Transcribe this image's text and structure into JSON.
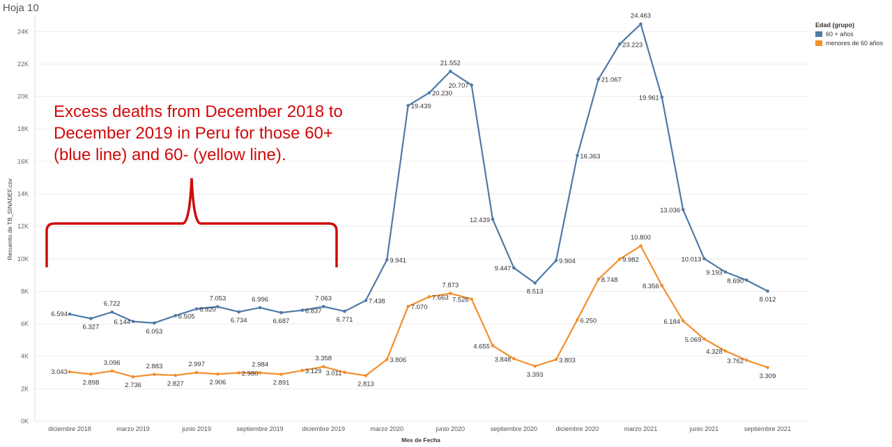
{
  "sheet_title": "Hoja 10",
  "annotation": "Excess deaths from December 2018 to December 2019 in Peru for those 60+ (blue line) and 60- (yellow line).",
  "colors": {
    "accent_red": "#d10a0a",
    "series_60plus": "#4e79a7",
    "series_under60": "#f28e2b"
  },
  "chart_data": {
    "type": "line",
    "xlabel": "Mes de Fecha",
    "ylabel": "Recuento de TB_SINADEF.csv",
    "ylim": [
      0,
      25000
    ],
    "y_ticks": [
      "0K",
      "2K",
      "4K",
      "6K",
      "8K",
      "10K",
      "12K",
      "14K",
      "16K",
      "18K",
      "20K",
      "22K",
      "24K"
    ],
    "x_ticks": [
      {
        "index": 0,
        "label": "diciembre 2018"
      },
      {
        "index": 3,
        "label": "marzo 2019"
      },
      {
        "index": 6,
        "label": "junio 2019"
      },
      {
        "index": 9,
        "label": "septiembre 2019"
      },
      {
        "index": 12,
        "label": "diciembre 2019"
      },
      {
        "index": 15,
        "label": "marzo 2020"
      },
      {
        "index": 18,
        "label": "junio 2020"
      },
      {
        "index": 21,
        "label": "septiembre 2020"
      },
      {
        "index": 24,
        "label": "diciembre 2020"
      },
      {
        "index": 27,
        "label": "marzo 2021"
      },
      {
        "index": 30,
        "label": "junio 2021"
      },
      {
        "index": 33,
        "label": "septiembre 2021"
      }
    ],
    "legend_title": "Edad (grupo)",
    "legend_position": "top-right",
    "grid": true,
    "series": [
      {
        "name": "60 + años",
        "values": [
          6594,
          6327,
          6722,
          6144,
          6053,
          6505,
          6920,
          7053,
          6734,
          6996,
          6687,
          6837,
          7063,
          6771,
          7438,
          9941,
          19439,
          20230,
          21552,
          20707,
          12439,
          9447,
          8513,
          9904,
          16363,
          21067,
          23223,
          24463,
          19961,
          13036,
          10013,
          9193,
          8690,
          8012
        ],
        "labels": [
          "6.594",
          "6.327",
          "6.722",
          "6.144",
          "6.053",
          "6.505",
          "6.920",
          "7.053",
          "6.734",
          "6.996",
          "6.687",
          "6.837",
          "7.063",
          "6.771",
          "7.438",
          "9.941",
          "19.439",
          "20.230",
          "21.552",
          "20.707",
          "12.439",
          "9.447",
          "8.513",
          "9.904",
          "16.363",
          "21.067",
          "23.223",
          "24.463",
          "19.961",
          "13.036",
          "10.013",
          "9.193",
          "8.690",
          "8.012"
        ]
      },
      {
        "name": "menores de 60 años",
        "values": [
          3043,
          2898,
          3096,
          2736,
          2883,
          2827,
          2997,
          2906,
          2980,
          2984,
          2891,
          3129,
          3358,
          3011,
          2813,
          3806,
          7070,
          7663,
          7873,
          7526,
          4655,
          3848,
          3393,
          3803,
          6250,
          8748,
          9982,
          10800,
          8356,
          6184,
          5069,
          4328,
          3762,
          3309
        ],
        "labels": [
          "3.043",
          "2.898",
          "3.096",
          "2.736",
          "2.883",
          "2.827",
          "2.997",
          "2.906",
          "2.980",
          "2.984",
          "2.891",
          "3.129",
          "3.358",
          "3.011",
          "2.813",
          "3.806",
          "7.070",
          "7.663",
          "7.873",
          "7.526",
          "4.655",
          "3.848",
          "3.393",
          "3.803",
          "6.250",
          "8.748",
          "9.982",
          "10.800",
          "8.356",
          "6.184",
          "5.069",
          "4.328",
          "3.762",
          "3.309"
        ]
      }
    ]
  }
}
